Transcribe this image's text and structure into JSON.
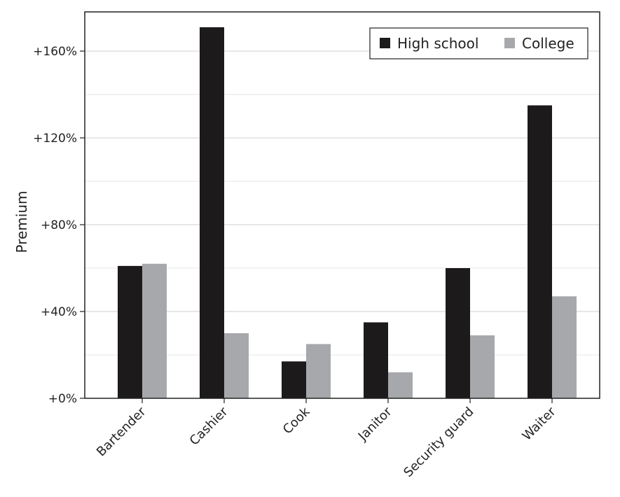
{
  "chart_data": {
    "type": "bar",
    "title": "",
    "xlabel": "",
    "ylabel": "Premium",
    "ylim": [
      0,
      180
    ],
    "yticks": [
      0,
      40,
      80,
      120,
      160
    ],
    "ytick_labels": [
      "+0%",
      "+40%",
      "+80%",
      "+120%",
      "+160%"
    ],
    "grid": "horizontal",
    "legend_position": "top-right",
    "categories": [
      "Bartender",
      "Cashier",
      "Cook",
      "Janitor",
      "Security guard",
      "Waiter"
    ],
    "series": [
      {
        "name": "High school",
        "color": "#1c1a1b",
        "values": [
          61,
          171,
          17,
          35,
          60,
          135
        ]
      },
      {
        "name": "College",
        "color": "#a6a8ab",
        "values": [
          62,
          30,
          25,
          12,
          29,
          47
        ]
      }
    ]
  }
}
